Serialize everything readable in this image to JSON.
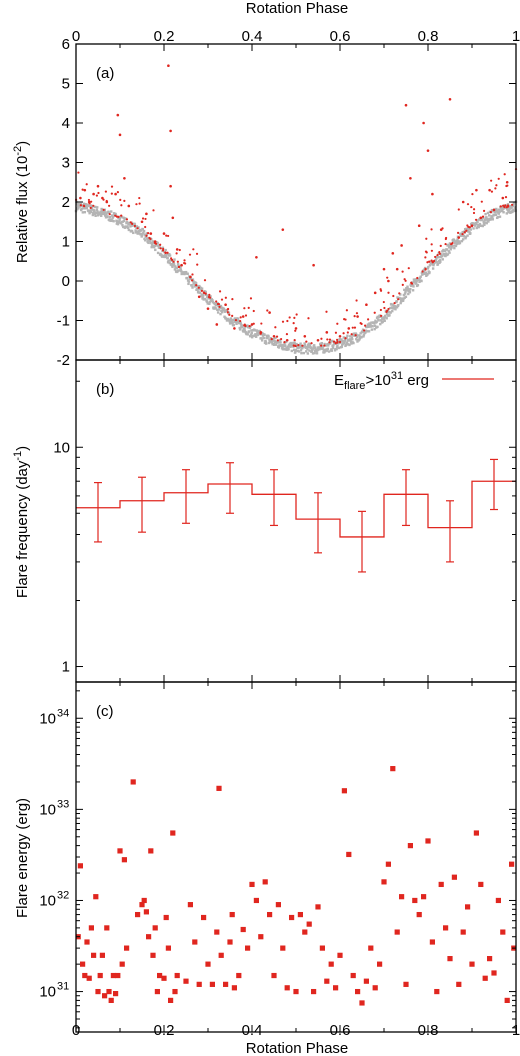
{
  "figure": {
    "top_xlabel": "Rotation Phase",
    "bottom_xlabel": "Rotation Phase",
    "x_ticks": [
      "0",
      "0.2",
      "0.4",
      "0.6",
      "0.8",
      "1"
    ]
  },
  "chart_data": [
    {
      "type": "scatter",
      "panel": "(a)",
      "ylabel": "Relative flux (10",
      "ylabel_sup": "-2",
      "ylabel_tail": ")",
      "xlim": [
        0,
        1
      ],
      "ylim": [
        -2,
        6
      ],
      "y_ticks": [
        "-2",
        "-1",
        "0",
        "1",
        "2",
        "3",
        "4",
        "5",
        "6"
      ],
      "grid": false,
      "colors": {
        "quiescent": "#b4b4b4",
        "flare": "#e0261f"
      },
      "series": [
        {
          "x": [
            0.0,
            0.05,
            0.1,
            0.15,
            0.2,
            0.25,
            0.3,
            0.35,
            0.4,
            0.45,
            0.5,
            0.55,
            0.6,
            0.65,
            0.7,
            0.75,
            0.8,
            0.85,
            0.9,
            0.95,
            1.0
          ],
          "y": [
            1.9,
            1.75,
            1.55,
            1.2,
            0.7,
            0.1,
            -0.45,
            -0.95,
            -1.3,
            -1.55,
            -1.7,
            -1.72,
            -1.6,
            -1.35,
            -0.9,
            -0.3,
            0.3,
            0.85,
            1.35,
            1.7,
            1.9
          ]
        },
        {
          "x": [
            0.01,
            0.02,
            0.03,
            0.04,
            0.05,
            0.06,
            0.07,
            0.09,
            0.095,
            0.1,
            0.11,
            0.12,
            0.15,
            0.16,
            0.17,
            0.18,
            0.2,
            0.21,
            0.215,
            0.215,
            0.22,
            0.23,
            0.24,
            0.26,
            0.28,
            0.3,
            0.32,
            0.34,
            0.36,
            0.38,
            0.4,
            0.41,
            0.42,
            0.44,
            0.45,
            0.47,
            0.48,
            0.5,
            0.52,
            0.54,
            0.55,
            0.57,
            0.6,
            0.62,
            0.64,
            0.66,
            0.68,
            0.7,
            0.71,
            0.72,
            0.73,
            0.74,
            0.75,
            0.76,
            0.78,
            0.79,
            0.8,
            0.81,
            0.83,
            0.85,
            0.87,
            0.88,
            0.9,
            0.91,
            0.92,
            0.94,
            0.95,
            0.97,
            0.98
          ],
          "y": [
            2.1,
            2.3,
            2.0,
            2.2,
            2.4,
            2.1,
            2.0,
            2.2,
            4.2,
            3.7,
            2.6,
            1.9,
            1.5,
            1.7,
            1.2,
            1.0,
            1.2,
            5.45,
            3.8,
            2.4,
            1.6,
            0.8,
            0.4,
            0.1,
            -0.4,
            -0.7,
            -1.1,
            -0.6,
            -1.2,
            -0.9,
            -1.1,
            0.6,
            -1.3,
            -0.8,
            -1.4,
            1.3,
            -1.5,
            -1.2,
            -1.4,
            0.4,
            -1.5,
            -1.3,
            -1.4,
            -1.2,
            -0.9,
            -0.6,
            -0.3,
            0.3,
            0.0,
            0.7,
            0.3,
            0.9,
            4.45,
            2.6,
            1.4,
            4.0,
            3.3,
            2.2,
            1.3,
            4.6,
            1.1,
            2.0,
            1.4,
            2.3,
            1.6,
            2.3,
            1.8,
            2.1,
            2.5
          ]
        }
      ]
    },
    {
      "type": "line",
      "panel": "(b)",
      "ylabel": "Flare frequency (day",
      "ylabel_sup": "-1",
      "ylabel_tail": ")",
      "xlim": [
        0,
        1
      ],
      "ylim": [
        0.85,
        25
      ],
      "yscale": "log",
      "y_ticks": [
        "1",
        "10"
      ],
      "legend_prefix": "E",
      "legend_sub": "flare",
      "legend_mid": ">10",
      "legend_sup": "31",
      "legend_suffix": " erg",
      "legend_position": "top-right",
      "grid": false,
      "colors": {
        "line": "#e0261f"
      },
      "series": [
        {
          "step": "mid",
          "x": [
            0.05,
            0.15,
            0.25,
            0.35,
            0.45,
            0.55,
            0.65,
            0.75,
            0.85,
            0.95
          ],
          "y": [
            5.3,
            5.7,
            6.2,
            6.8,
            6.1,
            4.7,
            3.9,
            6.1,
            4.3,
            7.0
          ],
          "y_err_low": [
            3.7,
            4.1,
            4.5,
            5.0,
            4.4,
            3.3,
            2.7,
            4.4,
            3.0,
            5.2
          ],
          "y_err_high": [
            6.9,
            7.3,
            7.9,
            8.5,
            7.9,
            6.2,
            5.1,
            7.9,
            5.7,
            8.8
          ]
        }
      ]
    },
    {
      "type": "scatter",
      "panel": "(c)",
      "ylabel": "Flare energy (erg)",
      "xlim": [
        0,
        1
      ],
      "ylim": [
        3.6e+30,
        2.5e+34
      ],
      "yscale": "log",
      "y_ticks": [
        "10",
        "10",
        "10",
        "10"
      ],
      "y_tick_sups": [
        "31",
        "32",
        "33",
        "34"
      ],
      "grid": false,
      "colors": {
        "points": "#e0261f"
      },
      "series": [
        {
          "x": [
            0.005,
            0.01,
            0.015,
            0.02,
            0.025,
            0.03,
            0.035,
            0.04,
            0.045,
            0.05,
            0.055,
            0.06,
            0.065,
            0.07,
            0.075,
            0.08,
            0.085,
            0.09,
            0.095,
            0.1,
            0.105,
            0.11,
            0.115,
            0.13,
            0.14,
            0.15,
            0.155,
            0.16,
            0.165,
            0.17,
            0.175,
            0.18,
            0.185,
            0.19,
            0.2,
            0.205,
            0.21,
            0.215,
            0.22,
            0.225,
            0.23,
            0.25,
            0.26,
            0.27,
            0.28,
            0.29,
            0.3,
            0.31,
            0.32,
            0.325,
            0.33,
            0.34,
            0.35,
            0.355,
            0.36,
            0.37,
            0.38,
            0.39,
            0.4,
            0.41,
            0.42,
            0.43,
            0.44,
            0.45,
            0.46,
            0.47,
            0.48,
            0.49,
            0.5,
            0.51,
            0.52,
            0.53,
            0.54,
            0.55,
            0.56,
            0.57,
            0.58,
            0.59,
            0.6,
            0.61,
            0.62,
            0.63,
            0.64,
            0.65,
            0.66,
            0.67,
            0.68,
            0.69,
            0.7,
            0.71,
            0.72,
            0.73,
            0.74,
            0.75,
            0.76,
            0.77,
            0.78,
            0.79,
            0.8,
            0.81,
            0.82,
            0.83,
            0.84,
            0.85,
            0.86,
            0.87,
            0.88,
            0.89,
            0.9,
            0.91,
            0.92,
            0.93,
            0.94,
            0.95,
            0.96,
            0.97,
            0.98,
            0.99,
            0.995
          ],
          "y": [
            4e+31,
            2.4e+32,
            2e+31,
            1.5e+31,
            3.5e+31,
            1.4e+31,
            5e+31,
            2.5e+31,
            1.1e+32,
            1e+31,
            1.5e+31,
            2.5e+31,
            9e+30,
            5e+31,
            1e+31,
            8e+30,
            1.5e+31,
            9.5e+30,
            1.5e+31,
            3.5e+32,
            2e+31,
            2.8e+32,
            3e+31,
            2e+33,
            7e+31,
            9e+31,
            1e+32,
            7.5e+31,
            4e+31,
            3.5e+32,
            2.5e+31,
            5e+31,
            1e+31,
            1.5e+31,
            1.4e+31,
            6.5e+31,
            3e+31,
            8e+30,
            5.5e+32,
            1e+31,
            1.5e+31,
            1.3e+31,
            9e+31,
            3.5e+31,
            1.2e+31,
            6.5e+31,
            2e+31,
            1.2e+31,
            4.5e+31,
            1.7e+33,
            2.5e+31,
            1.2e+31,
            3.5e+31,
            7e+31,
            1.1e+31,
            1.5e+31,
            4.8e+31,
            3e+31,
            1.5e+32,
            1e+32,
            4e+31,
            1.6e+32,
            7e+31,
            1.5e+31,
            9e+31,
            3e+31,
            1.1e+31,
            6.5e+31,
            1e+31,
            7e+31,
            4.5e+31,
            5.5e+31,
            1e+31,
            8.5e+31,
            3e+31,
            1.3e+31,
            2e+31,
            1.1e+31,
            2.5e+31,
            1.6e+33,
            3.2e+32,
            1.5e+31,
            1e+31,
            7.5e+30,
            1.3e+31,
            3e+31,
            1.1e+31,
            2e+31,
            1.6e+32,
            2.5e+32,
            2.8e+33,
            4.5e+31,
            1.1e+32,
            1.2e+31,
            4e+32,
            1e+32,
            7e+31,
            1.1e+32,
            4.5e+32,
            3.5e+31,
            1e+31,
            1.5e+32,
            5e+31,
            2.3e+31,
            1.8e+32,
            1.2e+31,
            4.5e+31,
            8.5e+31,
            2e+31,
            5.5e+32,
            1.5e+32,
            1.4e+31,
            2.3e+31,
            1.6e+31,
            1e+32,
            4.5e+31,
            8e+30,
            2.5e+32,
            3e+31
          ]
        }
      ]
    }
  ]
}
